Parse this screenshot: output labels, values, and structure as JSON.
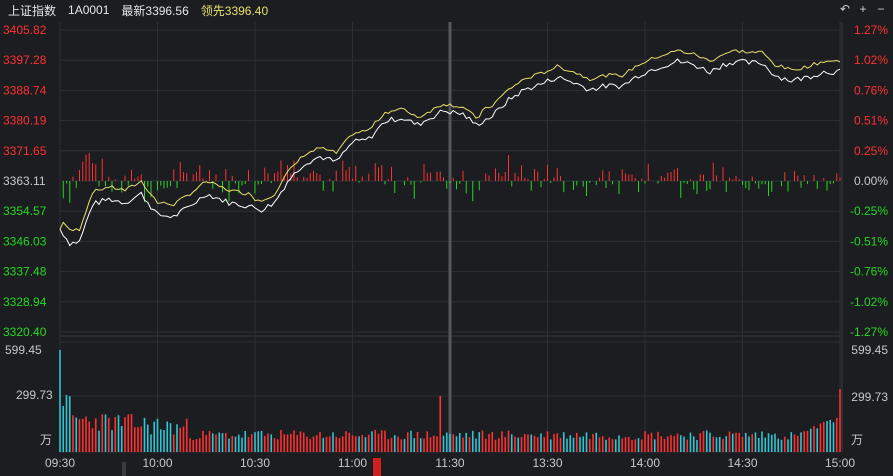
{
  "header": {
    "index_name": "上证指数",
    "code": "1A0001",
    "last_label": "最新3396.56",
    "lead_label": "领先3396.40"
  },
  "icons": [
    "undo-icon",
    "plus-icon",
    "minus-icon"
  ],
  "colors": {
    "background": "#1c1d21",
    "up": "#ff3030",
    "down": "#22d81e",
    "flat": "#c8c8c8",
    "price_line": "#ffffff",
    "lead_line": "#e8e06a",
    "vol_up": "#ff3030",
    "vol_down": "#2ec7d6",
    "grid": "#2e3036"
  },
  "price_axis": {
    "left_labels": [
      "3405.82",
      "3397.28",
      "3388.74",
      "3380.19",
      "3371.65",
      "3363.11",
      "3354.57",
      "3346.03",
      "3337.48",
      "3328.94",
      "3320.40"
    ],
    "right_labels": [
      "1.27%",
      "1.02%",
      "0.76%",
      "0.51%",
      "0.25%",
      "0.00%",
      "-0.25%",
      "-0.51%",
      "-0.76%",
      "-1.02%",
      "-1.27%"
    ],
    "prev_close": 3363.11,
    "max": 3405.82,
    "min": 3320.4
  },
  "volume_axis": {
    "max_label": "599.45",
    "mid_label": "299.73",
    "unit_label": "万",
    "max": 599.45
  },
  "time_axis": [
    "09:30",
    "10:00",
    "10:30",
    "11:00",
    "11:30",
    "13:30",
    "14:00",
    "14:30",
    "15:00"
  ],
  "chart_data": {
    "type": "line",
    "x": [
      "09:30",
      "10:00",
      "10:30",
      "11:00",
      "11:30",
      "13:30",
      "14:00",
      "14:30",
      "15:00"
    ],
    "series": [
      {
        "price_keypoints": [
          [
            0,
            3349.5
          ],
          [
            3,
            3345.5
          ],
          [
            6,
            3346.0
          ],
          [
            10,
            3356.5
          ],
          [
            15,
            3358.0
          ],
          [
            20,
            3357.0
          ],
          [
            25,
            3359.5
          ],
          [
            30,
            3353.5
          ],
          [
            35,
            3353.0
          ],
          [
            40,
            3356.0
          ],
          [
            45,
            3359.5
          ],
          [
            52,
            3357.0
          ],
          [
            58,
            3356.0
          ],
          [
            62,
            3355.0
          ],
          [
            66,
            3357.0
          ],
          [
            70,
            3363.0
          ],
          [
            75,
            3368.0
          ],
          [
            80,
            3370.0
          ],
          [
            85,
            3368.5
          ],
          [
            90,
            3374.0
          ],
          [
            95,
            3375.0
          ],
          [
            100,
            3380.0
          ],
          [
            105,
            3381.0
          ],
          [
            110,
            3379.0
          ],
          [
            118,
            3383.0
          ],
          [
            124,
            3382.0
          ],
          [
            128,
            3379.0
          ],
          [
            133,
            3381.5
          ],
          [
            138,
            3386.0
          ],
          [
            143,
            3389.0
          ],
          [
            148,
            3390.5
          ],
          [
            153,
            3392.5
          ],
          [
            158,
            3391.0
          ],
          [
            163,
            3389.0
          ],
          [
            168,
            3390.0
          ],
          [
            173,
            3390.0
          ],
          [
            178,
            3393.0
          ],
          [
            183,
            3395.0
          ],
          [
            190,
            3397.0
          ],
          [
            195,
            3396.0
          ],
          [
            200,
            3394.0
          ],
          [
            204,
            3396.0
          ],
          [
            208,
            3397.0
          ],
          [
            212,
            3396.5
          ],
          [
            216,
            3396.5
          ],
          [
            220,
            3393.0
          ],
          [
            225,
            3391.5
          ],
          [
            230,
            3392.5
          ],
          [
            235,
            3394.0
          ],
          [
            240,
            3394.0
          ]
        ]
      }
    ]
  }
}
